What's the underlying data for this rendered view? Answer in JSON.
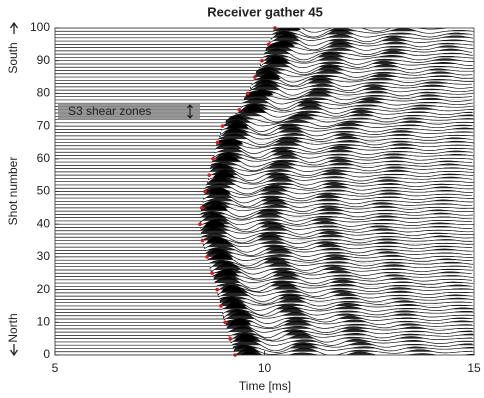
{
  "chart_data": {
    "type": "scatter",
    "title": "Receiver gather 45",
    "x_label": "Time [ms]",
    "y_label": "Shot number",
    "y_top_label": "South",
    "y_bottom_label": "North",
    "annotation": "S3 shear zones",
    "x": [
      9.3,
      9.18,
      9.06,
      8.96,
      8.87,
      8.75,
      8.63,
      8.52,
      8.46,
      8.5,
      8.58,
      8.68,
      8.77,
      8.88,
      9.0,
      9.4,
      9.6,
      9.77,
      9.94,
      10.1,
      10.25
    ],
    "y": [
      0,
      5,
      10,
      15,
      20,
      25,
      30,
      35,
      40,
      45,
      50,
      55,
      60,
      65,
      70,
      75,
      80,
      85,
      90,
      95,
      100
    ],
    "color": "#e01818",
    "xlim": [
      5,
      15
    ],
    "xticks": [
      5,
      10,
      15
    ],
    "ylim": [
      0,
      100
    ],
    "yticks": [
      0,
      10,
      20,
      30,
      40,
      50,
      60,
      70,
      80,
      90,
      100
    ]
  }
}
